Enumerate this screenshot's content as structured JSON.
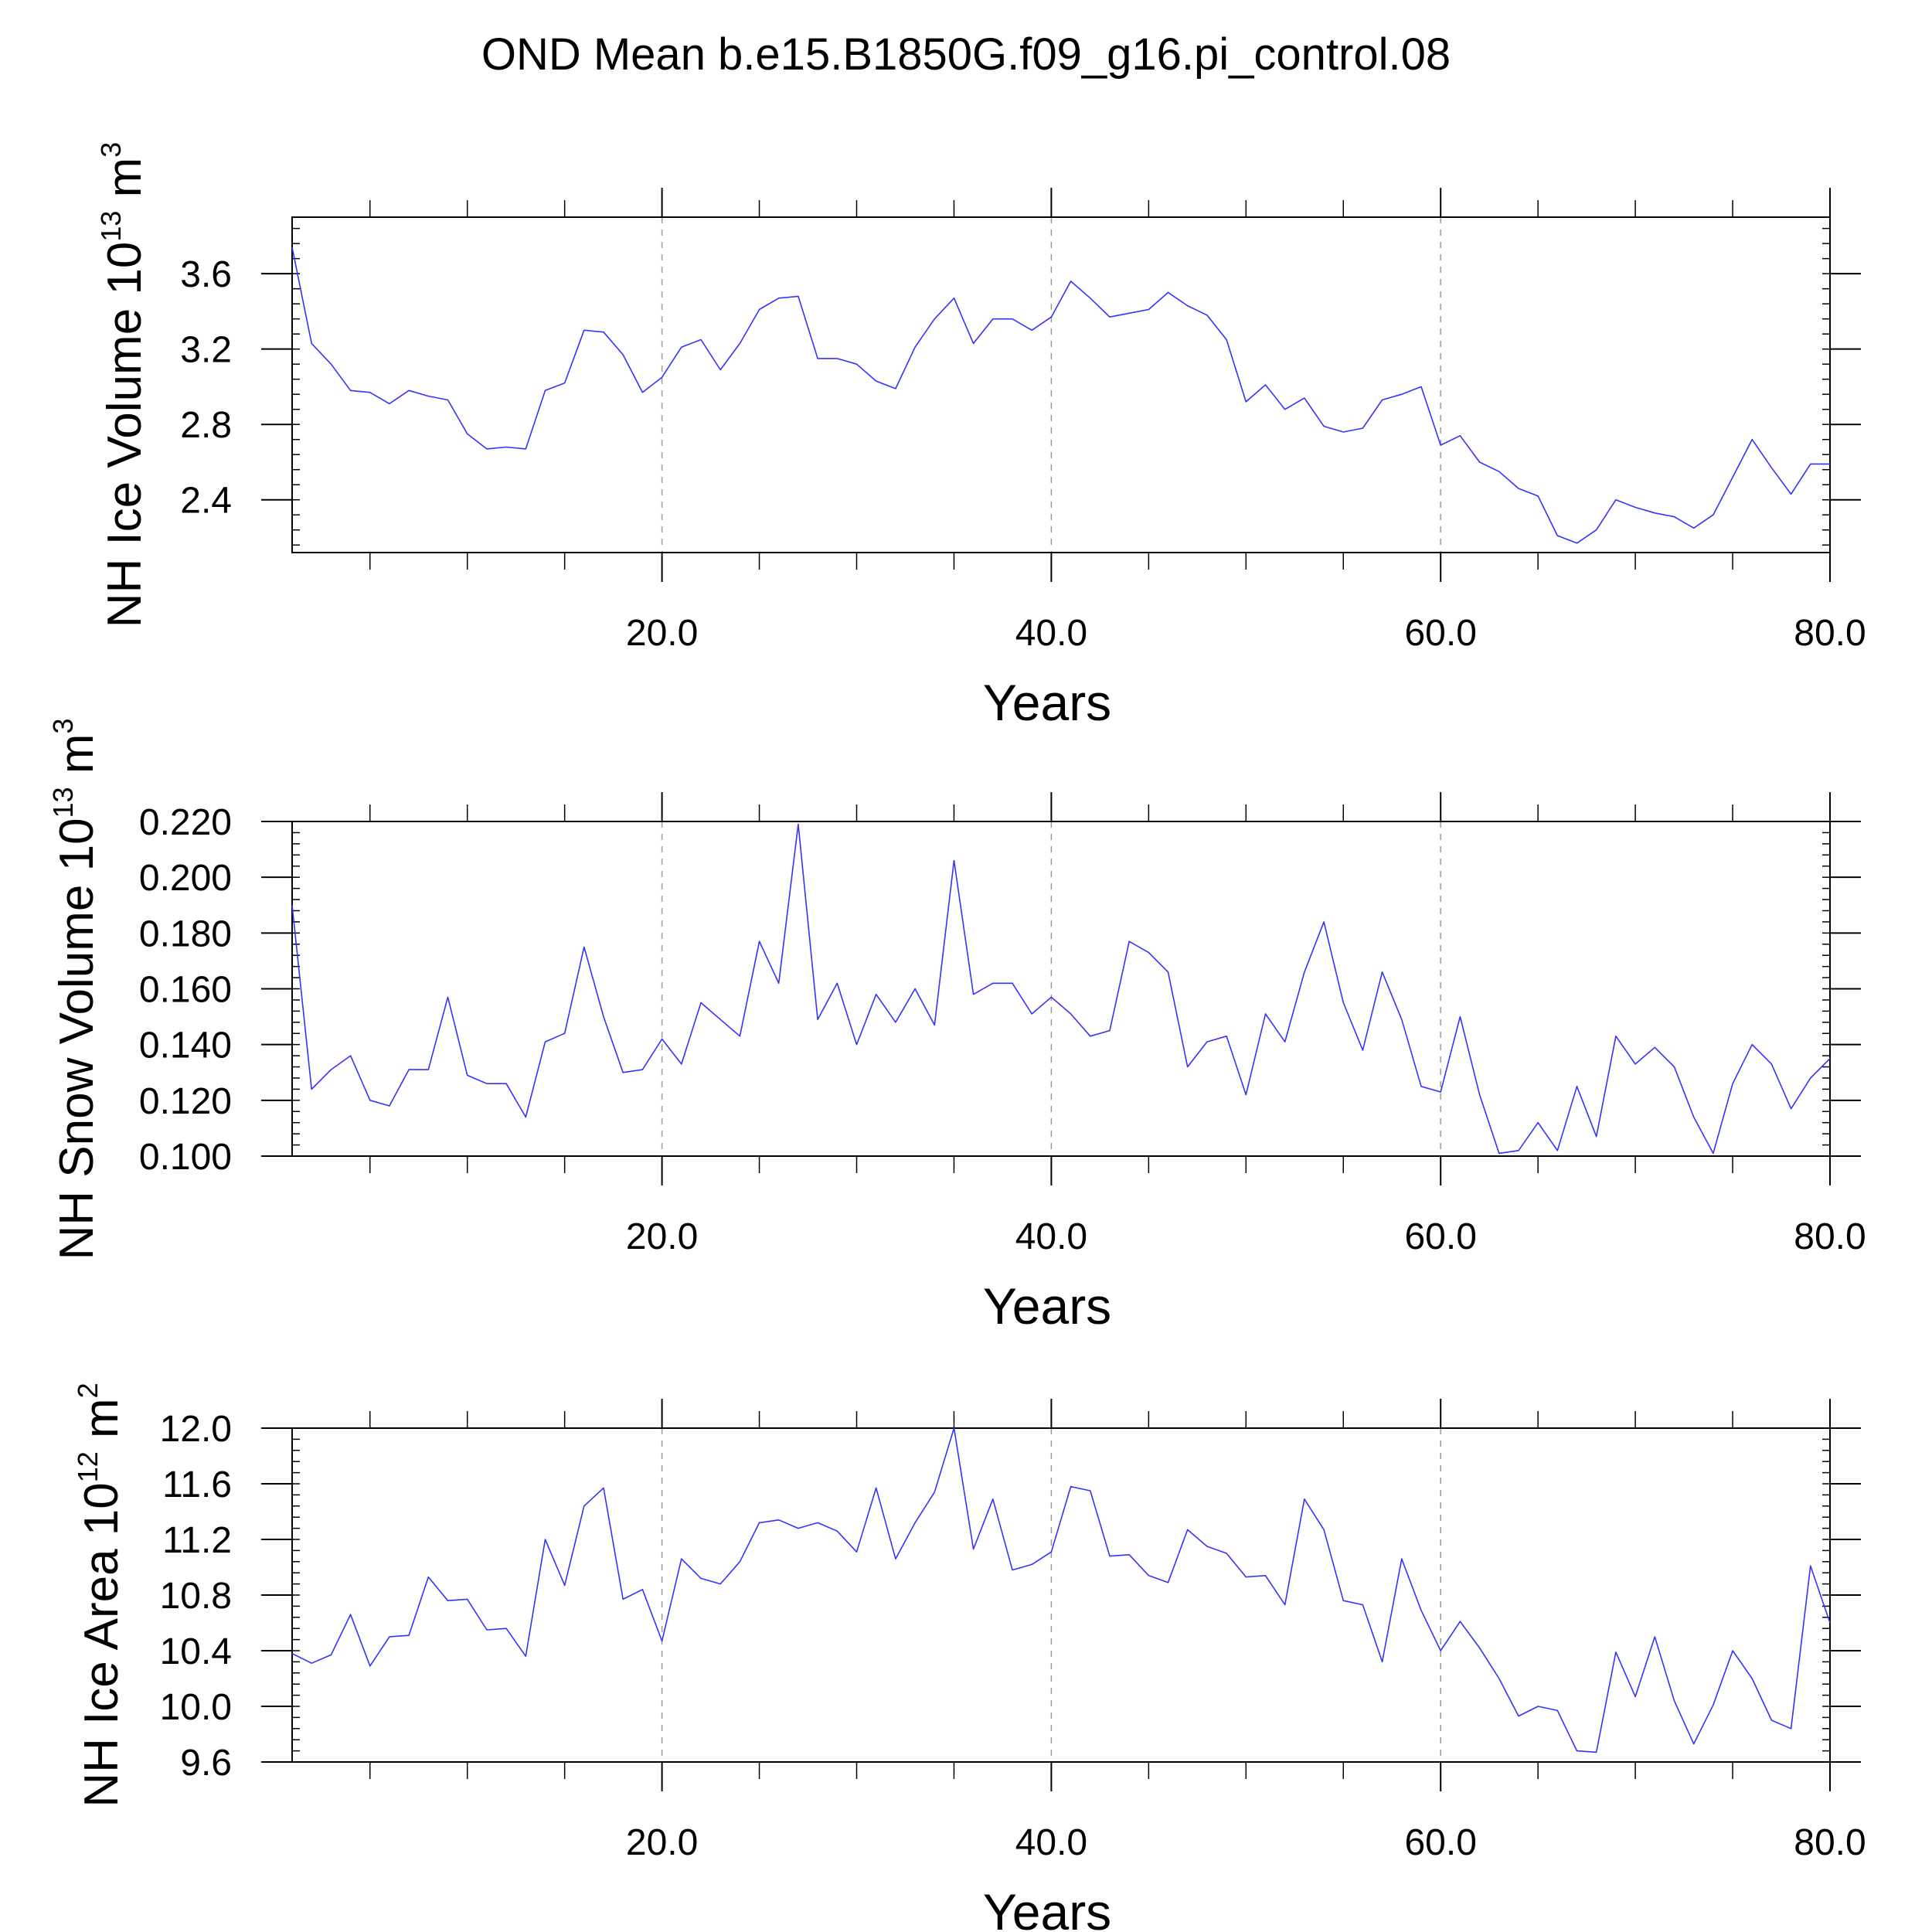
{
  "title": "OND Mean b.e15.B1850G.f09_g16.pi_control.08",
  "colors": {
    "series": "#3333ff",
    "axis": "#000000",
    "grid": "#999999"
  },
  "chart_data": [
    {
      "type": "line",
      "xlabel": "Years",
      "ylabel": {
        "main": "NH Ice Volume 10",
        "exp": "13",
        "unit": "m",
        "unit_exp": "3"
      },
      "xlim": [
        1,
        80
      ],
      "ylim": [
        2.12,
        3.9
      ],
      "x_ticks": [
        20,
        40,
        60,
        80
      ],
      "x_tick_labels": [
        "20.0",
        "40.0",
        "60.0",
        "80.0"
      ],
      "y_ticks": [
        2.4,
        2.8,
        3.2,
        3.6
      ],
      "y_tick_labels": [
        "2.4",
        "2.8",
        "3.2",
        "3.6"
      ],
      "y_minor_step": 0.08,
      "series": [
        {
          "name": "NH Ice Volume",
          "values": [
            3.74,
            3.23,
            3.12,
            2.98,
            2.97,
            2.91,
            2.98,
            2.95,
            2.93,
            2.75,
            2.67,
            2.68,
            2.67,
            2.98,
            3.02,
            3.3,
            3.29,
            3.17,
            2.97,
            3.05,
            3.21,
            3.25,
            3.09,
            3.23,
            3.41,
            3.47,
            3.48,
            3.15,
            3.15,
            3.12,
            3.03,
            2.99,
            3.21,
            3.36,
            3.47,
            3.23,
            3.36,
            3.36,
            3.3,
            3.37,
            3.56,
            3.47,
            3.37,
            3.39,
            3.41,
            3.5,
            3.43,
            3.38,
            3.25,
            2.92,
            3.01,
            2.88,
            2.94,
            2.79,
            2.76,
            2.78,
            2.93,
            2.96,
            3.0,
            2.69,
            2.74,
            2.6,
            2.55,
            2.46,
            2.42,
            2.21,
            2.17,
            2.24,
            2.4,
            2.36,
            2.33,
            2.31,
            2.25,
            2.32,
            2.52,
            2.72,
            2.57,
            2.43,
            2.59,
            2.59
          ]
        }
      ]
    },
    {
      "type": "line",
      "xlabel": "Years",
      "ylabel": {
        "main": "NH Snow Volume 10",
        "exp": "13",
        "unit": "m",
        "unit_exp": "3"
      },
      "xlim": [
        1,
        80
      ],
      "ylim": [
        0.1,
        0.22
      ],
      "x_ticks": [
        20,
        40,
        60,
        80
      ],
      "x_tick_labels": [
        "20.0",
        "40.0",
        "60.0",
        "80.0"
      ],
      "y_ticks": [
        0.1,
        0.12,
        0.14,
        0.16,
        0.18,
        0.2,
        0.22
      ],
      "y_tick_labels": [
        "0.100",
        "0.120",
        "0.140",
        "0.160",
        "0.180",
        "0.200",
        "0.220"
      ],
      "y_minor_step": 0.004,
      "series": [
        {
          "name": "NH Snow Volume",
          "values": [
            0.19,
            0.124,
            0.131,
            0.136,
            0.12,
            0.118,
            0.131,
            0.131,
            0.157,
            0.129,
            0.126,
            0.126,
            0.114,
            0.141,
            0.144,
            0.175,
            0.15,
            0.13,
            0.131,
            0.142,
            0.133,
            0.155,
            0.149,
            0.143,
            0.177,
            0.162,
            0.219,
            0.149,
            0.162,
            0.14,
            0.158,
            0.148,
            0.16,
            0.147,
            0.206,
            0.158,
            0.162,
            0.162,
            0.151,
            0.157,
            0.151,
            0.143,
            0.145,
            0.177,
            0.173,
            0.166,
            0.132,
            0.141,
            0.143,
            0.122,
            0.151,
            0.141,
            0.166,
            0.184,
            0.155,
            0.138,
            0.166,
            0.149,
            0.125,
            0.123,
            0.15,
            0.122,
            0.101,
            0.102,
            0.112,
            0.102,
            0.125,
            0.107,
            0.143,
            0.133,
            0.139,
            0.132,
            0.114,
            0.101,
            0.126,
            0.14,
            0.133,
            0.117,
            0.128,
            0.135
          ]
        }
      ]
    },
    {
      "type": "line",
      "xlabel": "Years",
      "ylabel": {
        "main": "NH Ice Area 10",
        "exp": "12",
        "unit": "m",
        "unit_exp": "2"
      },
      "xlim": [
        1,
        80
      ],
      "ylim": [
        9.6,
        12.0
      ],
      "x_ticks": [
        20,
        40,
        60,
        80
      ],
      "x_tick_labels": [
        "20.0",
        "40.0",
        "60.0",
        "80.0"
      ],
      "y_ticks": [
        9.6,
        10.0,
        10.4,
        10.8,
        11.2,
        11.6,
        12.0
      ],
      "y_tick_labels": [
        "9.6",
        "10.0",
        "10.4",
        "10.8",
        "11.2",
        "11.6",
        "12.0"
      ],
      "y_minor_step": 0.08,
      "series": [
        {
          "name": "NH Ice Area",
          "values": [
            10.38,
            10.31,
            10.37,
            10.66,
            10.29,
            10.5,
            10.51,
            10.93,
            10.76,
            10.77,
            10.55,
            10.56,
            10.36,
            11.2,
            10.87,
            11.44,
            11.57,
            10.77,
            10.84,
            10.47,
            11.06,
            10.92,
            10.88,
            11.04,
            11.32,
            11.34,
            11.28,
            11.32,
            11.26,
            11.11,
            11.57,
            11.06,
            11.32,
            11.54,
            12.0,
            11.13,
            11.49,
            10.98,
            11.02,
            11.11,
            11.58,
            11.55,
            11.08,
            11.09,
            10.94,
            10.89,
            11.27,
            11.15,
            11.1,
            10.93,
            10.94,
            10.73,
            11.49,
            11.27,
            10.76,
            10.73,
            10.32,
            11.06,
            10.69,
            10.4,
            10.61,
            10.42,
            10.2,
            9.93,
            10.0,
            9.97,
            9.68,
            9.67,
            10.39,
            10.07,
            10.5,
            10.04,
            9.73,
            10.01,
            10.4,
            10.2,
            9.9,
            9.84,
            11.01,
            10.6
          ]
        }
      ]
    }
  ]
}
